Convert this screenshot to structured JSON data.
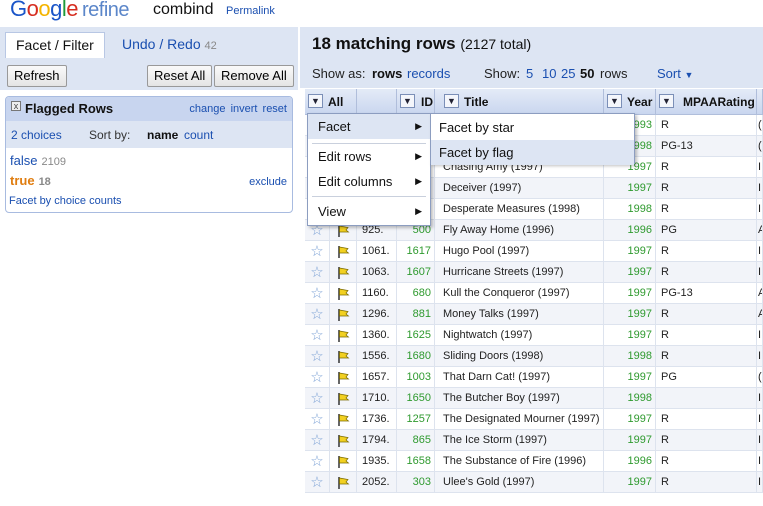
{
  "header": {
    "logo_letters": [
      "G",
      "o",
      "o",
      "g",
      "l",
      "e"
    ],
    "logo_suffix": "refine",
    "project_name": "combind",
    "permalink": "Permalink"
  },
  "left_panel": {
    "tabs": [
      {
        "label": "Facet / Filter"
      },
      {
        "label": "Undo / Redo",
        "count": "42"
      }
    ],
    "toolbar": {
      "refresh": "Refresh",
      "reset_all": "Reset All",
      "remove_all": "Remove All"
    },
    "facet": {
      "close_glyph": "x",
      "title": "Flagged Rows",
      "links": [
        "change",
        "invert",
        "reset"
      ],
      "choices_label": "2 choices",
      "sort_by": "Sort by:",
      "sort_name": "name",
      "sort_count": "count",
      "choices": [
        {
          "label": "false",
          "count": "2109"
        },
        {
          "label": "true",
          "count": "18"
        }
      ],
      "exclude": "exclude",
      "facet_by_counts": "Facet by choice counts"
    }
  },
  "right_panel": {
    "summary": "18 matching rows",
    "total": "(2127 total)",
    "show_as": "Show as:",
    "mode_rows": "rows",
    "mode_records": "records",
    "show": "Show:",
    "page_sizes": [
      "5",
      "10",
      "25",
      "50"
    ],
    "page_unit": "rows",
    "sort": "Sort",
    "columns": [
      "All",
      "ID",
      "Title",
      "Year",
      "MPAARating"
    ],
    "rows": [
      {
        "num": "",
        "id": "",
        "title": "",
        "year": "1993",
        "rating": "R",
        "extra": "("
      },
      {
        "num": "",
        "id": "",
        "title": "",
        "year": "1998",
        "rating": "PG-13",
        "extra": "("
      },
      {
        "num": "",
        "id": "",
        "title": "Chasing Amy (1997)",
        "year": "1997",
        "rating": "R",
        "extra": "I"
      },
      {
        "num": "",
        "id": "",
        "title": "Deceiver (1997)",
        "year": "1997",
        "rating": "R",
        "extra": "I"
      },
      {
        "num": "",
        "id": "",
        "title": "Desperate Measures (1998)",
        "year": "1998",
        "rating": "R",
        "extra": "I"
      },
      {
        "num": "925.",
        "id": "500",
        "title": "Fly Away Home (1996)",
        "year": "1996",
        "rating": "PG",
        "extra": "A"
      },
      {
        "num": "1061.",
        "id": "1617",
        "title": "Hugo Pool (1997)",
        "year": "1997",
        "rating": "R",
        "extra": "I"
      },
      {
        "num": "1063.",
        "id": "1607",
        "title": "Hurricane Streets (1997)",
        "year": "1997",
        "rating": "R",
        "extra": "I"
      },
      {
        "num": "1160.",
        "id": "680",
        "title": "Kull the Conqueror (1997)",
        "year": "1997",
        "rating": "PG-13",
        "extra": "A"
      },
      {
        "num": "1296.",
        "id": "881",
        "title": "Money Talks (1997)",
        "year": "1997",
        "rating": "R",
        "extra": "A"
      },
      {
        "num": "1360.",
        "id": "1625",
        "title": "Nightwatch (1997)",
        "year": "1997",
        "rating": "R",
        "extra": "I"
      },
      {
        "num": "1556.",
        "id": "1680",
        "title": "Sliding Doors (1998)",
        "year": "1998",
        "rating": "R",
        "extra": "I"
      },
      {
        "num": "1657.",
        "id": "1003",
        "title": "That Darn Cat! (1997)",
        "year": "1997",
        "rating": "PG",
        "extra": "("
      },
      {
        "num": "1710.",
        "id": "1650",
        "title": "The Butcher Boy (1997)",
        "year": "1998",
        "rating": "",
        "extra": "I"
      },
      {
        "num": "1736.",
        "id": "1257",
        "title": "The Designated Mourner (1997)",
        "year": "1997",
        "rating": "R",
        "extra": "I"
      },
      {
        "num": "1794.",
        "id": "865",
        "title": "The Ice Storm (1997)",
        "year": "1997",
        "rating": "R",
        "extra": "I"
      },
      {
        "num": "1935.",
        "id": "1658",
        "title": "The Substance of Fire (1996)",
        "year": "1996",
        "rating": "R",
        "extra": "I"
      },
      {
        "num": "2052.",
        "id": "303",
        "title": "Ulee's Gold (1997)",
        "year": "1997",
        "rating": "R",
        "extra": "I"
      }
    ]
  },
  "context_menu": {
    "items": [
      {
        "label": "Facet"
      },
      {
        "label": "Edit rows"
      },
      {
        "label": "Edit columns"
      },
      {
        "label": "View"
      }
    ],
    "submenu": [
      {
        "label": "Facet by star"
      },
      {
        "label": "Facet by flag"
      }
    ]
  },
  "colors": {
    "accent_blue": "#1a4fb0",
    "panel_bg": "#dde5f3",
    "numeric_green": "#2f9a2f",
    "true_orange": "#e07d10"
  },
  "icons": [
    "star-icon",
    "flag-icon",
    "chevron-down-icon",
    "chevron-right-icon",
    "close-icon"
  ]
}
